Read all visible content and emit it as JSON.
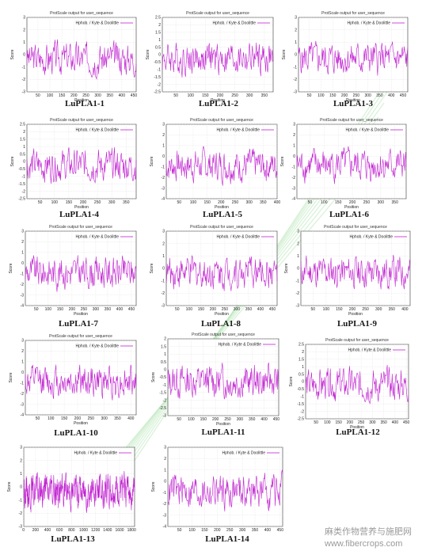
{
  "figure": {
    "watermark": {
      "line1": "麻类作物营养与施肥网",
      "line2": "www.fibercrops.com"
    },
    "legend_line": "#c020d0"
  },
  "chart_data": [
    {
      "id": "LuPLA1-1",
      "caption": "LuPLA1-1",
      "title": "ProtScale output for user_sequence",
      "xlabel": "Position",
      "ylabel": "Score",
      "legend": "Hphob. / Kyte & Doolittle",
      "type": "line",
      "xlim": [
        4,
        460
      ],
      "ylim": [
        -3,
        3
      ],
      "xticks": [
        50,
        100,
        150,
        200,
        250,
        300,
        350,
        400,
        450
      ],
      "yticks": [
        -3,
        -2,
        -1,
        0,
        1,
        2,
        3
      ]
    },
    {
      "id": "LuPLA1-2",
      "caption": "LuPLA1-2",
      "title": "ProtScale output for user_sequence",
      "xlabel": "Position",
      "ylabel": "Score",
      "legend": "Hphob. / Kyte & Doolittle",
      "type": "line",
      "xlim": [
        4,
        380
      ],
      "ylim": [
        -2.5,
        2.5
      ],
      "xticks": [
        50,
        100,
        150,
        200,
        250,
        300,
        350
      ],
      "yticks": [
        -2.5,
        -2,
        -1.5,
        -1,
        -0.5,
        0,
        0.5,
        1,
        1.5,
        2,
        2.5
      ]
    },
    {
      "id": "LuPLA1-3",
      "caption": "LuPLA1-3",
      "title": "ProtScale output for user_sequence",
      "xlabel": "Position",
      "ylabel": "Score",
      "legend": "Hphob. / Kyte & Doolittle",
      "type": "line",
      "xlim": [
        4,
        470
      ],
      "ylim": [
        -3,
        3
      ],
      "xticks": [
        50,
        100,
        150,
        200,
        250,
        300,
        350,
        400,
        450
      ],
      "yticks": [
        -3,
        -2,
        -1,
        0,
        1,
        2,
        3
      ]
    },
    {
      "id": "LuPLA1-4",
      "caption": "LuPLA1-4",
      "title": "ProtScale output for user_sequence",
      "xlabel": "Position",
      "ylabel": "Score",
      "legend": "Hphob. / Kyte & Doolittle",
      "type": "line",
      "xlim": [
        4,
        385
      ],
      "ylim": [
        -2.5,
        2.5
      ],
      "xticks": [
        50,
        100,
        150,
        200,
        250,
        300,
        350
      ],
      "yticks": [
        -2.5,
        -2,
        -1.5,
        -1,
        -0.5,
        0,
        0.5,
        1,
        1.5,
        2,
        2.5
      ]
    },
    {
      "id": "LuPLA1-5",
      "caption": "LuPLA1-5",
      "title": "ProtScale output for user_sequence",
      "xlabel": "Position",
      "ylabel": "Score",
      "legend": "Hphob. / Kyte & Doolittle",
      "type": "line",
      "xlim": [
        4,
        400
      ],
      "ylim": [
        -4,
        3
      ],
      "xticks": [
        50,
        100,
        150,
        200,
        250,
        300,
        350,
        400
      ],
      "yticks": [
        -4,
        -3,
        -2,
        -1,
        0,
        1,
        2,
        3
      ]
    },
    {
      "id": "LuPLA1-6",
      "caption": "LuPLA1-6",
      "title": "ProtScale output for user_sequence",
      "xlabel": "Position",
      "ylabel": "Score",
      "legend": "Hphob. / Kyte & Doolittle",
      "type": "line",
      "xlim": [
        4,
        390
      ],
      "ylim": [
        -4,
        3
      ],
      "xticks": [
        50,
        100,
        150,
        200,
        250,
        300,
        350
      ],
      "yticks": [
        -4,
        -3,
        -2,
        -1,
        0,
        1,
        2,
        3
      ]
    },
    {
      "id": "LuPLA1-7",
      "caption": "LuPLA1-7",
      "title": "ProtScale output for user_sequence",
      "xlabel": "Position",
      "ylabel": "Score",
      "legend": "Hphob. / Kyte & Doolittle",
      "type": "line",
      "xlim": [
        4,
        470
      ],
      "ylim": [
        -4,
        3
      ],
      "xticks": [
        50,
        100,
        150,
        200,
        250,
        300,
        350,
        400,
        450
      ],
      "yticks": [
        -4,
        -3,
        -2,
        -1,
        0,
        1,
        2,
        3
      ]
    },
    {
      "id": "LuPLA1-8",
      "caption": "LuPLA1-8",
      "title": "ProtScale output for user_sequence",
      "xlabel": "Position",
      "ylabel": "Score",
      "legend": "Hphob. / Kyte & Doolittle",
      "type": "line",
      "xlim": [
        4,
        470
      ],
      "ylim": [
        -3,
        3
      ],
      "xticks": [
        50,
        100,
        150,
        200,
        250,
        300,
        350,
        400,
        450
      ],
      "yticks": [
        -3,
        -2,
        -1,
        0,
        1,
        2,
        3
      ]
    },
    {
      "id": "LuPLA1-9",
      "caption": "LuPLA1-9",
      "title": "ProtScale output for user_sequence",
      "xlabel": "Position",
      "ylabel": "Score",
      "legend": "Hphob. / Kyte & Doolittle",
      "type": "line",
      "xlim": [
        4,
        420
      ],
      "ylim": [
        -3,
        3
      ],
      "xticks": [
        50,
        100,
        150,
        200,
        250,
        300,
        350,
        400
      ],
      "yticks": [
        -3,
        -2,
        -1,
        0,
        1,
        2,
        3
      ]
    },
    {
      "id": "LuPLA1-10",
      "caption": "LuPLA1-10",
      "title": "ProtScale output for user_sequence",
      "xlabel": "Position",
      "ylabel": "Score",
      "legend": "Hphob. / Kyte & Doolittle",
      "type": "line",
      "xlim": [
        4,
        420
      ],
      "ylim": [
        -4,
        3
      ],
      "xticks": [
        50,
        100,
        150,
        200,
        250,
        300,
        350,
        400
      ],
      "yticks": [
        -4,
        -3,
        -2,
        -1,
        0,
        1,
        2,
        3
      ]
    },
    {
      "id": "LuPLA1-11",
      "caption": "LuPLA1-11",
      "title": "ProtScale output for user_sequence",
      "xlabel": "Position",
      "ylabel": "Score",
      "legend": "Hphob. / Kyte & Doolittle",
      "type": "line",
      "xlim": [
        4,
        460
      ],
      "ylim": [
        -3,
        2
      ],
      "xticks": [
        50,
        100,
        150,
        200,
        250,
        300,
        350,
        400,
        450
      ],
      "yticks": [
        -3,
        -2.5,
        -2,
        -1.5,
        -1,
        -0.5,
        0,
        0.5,
        1,
        1.5,
        2
      ]
    },
    {
      "id": "LuPLA1-12",
      "caption": "LuPLA1-12",
      "title": "ProtScale output for user_sequence",
      "xlabel": "Position",
      "ylabel": "Score",
      "legend": "Hphob. / Kyte & Doolittle",
      "type": "line",
      "xlim": [
        4,
        460
      ],
      "ylim": [
        -2.5,
        2.5
      ],
      "xticks": [
        50,
        100,
        150,
        200,
        250,
        300,
        350,
        400,
        450
      ],
      "yticks": [
        -2.5,
        -2,
        -1.5,
        -1,
        -0.5,
        0,
        0.5,
        1,
        1.5,
        2,
        2.5
      ]
    },
    {
      "id": "LuPLA1-13",
      "caption": "LuPLA1-13",
      "title": "",
      "xlabel": "",
      "ylabel": "Score",
      "legend": "Hphob. / Kyte & Doolittle",
      "type": "line",
      "xlim": [
        4,
        1850
      ],
      "ylim": [
        -3,
        3
      ],
      "xticks": [
        0,
        200,
        400,
        600,
        800,
        1000,
        1200,
        1400,
        1600,
        1800
      ],
      "yticks": [
        -3,
        -2,
        -1,
        0,
        1,
        2,
        3
      ]
    },
    {
      "id": "LuPLA1-14",
      "caption": "LuPLA1-14",
      "title": "",
      "xlabel": "",
      "ylabel": "Score",
      "legend": "Hphob. / Kyte & Doolittle",
      "type": "line",
      "xlim": [
        4,
        460
      ],
      "ylim": [
        -4,
        3
      ],
      "xticks": [
        50,
        100,
        150,
        200,
        250,
        300,
        350,
        400,
        450
      ],
      "yticks": [
        -4,
        -3,
        -2,
        -1,
        0,
        1,
        2,
        3
      ]
    }
  ]
}
